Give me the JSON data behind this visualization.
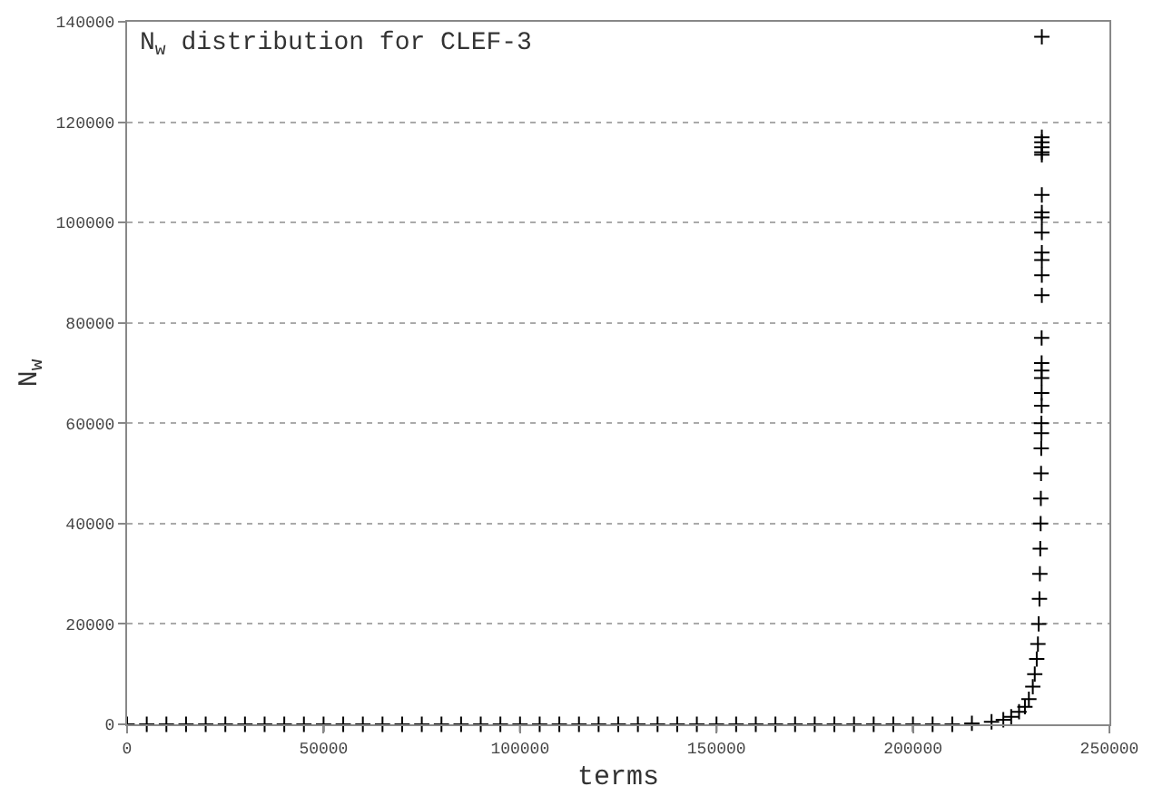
{
  "chart_data": {
    "type": "scatter",
    "title": "N$_{w}$ distribution for CLEF-3",
    "xlabel": "terms",
    "ylabel": "N$_{w}$",
    "xlim": [
      0,
      250000
    ],
    "xticks": [
      0,
      50000,
      100000,
      150000,
      200000,
      250000
    ],
    "ylim": [
      0,
      140000
    ],
    "yticks": [
      0,
      20000,
      40000,
      60000,
      80000,
      100000,
      120000,
      140000
    ],
    "grid": "y",
    "marker": "cross",
    "series": [
      {
        "color": "#000000",
        "x": [
          0,
          5000,
          10000,
          15000,
          20000,
          25000,
          30000,
          35000,
          40000,
          45000,
          50000,
          55000,
          60000,
          65000,
          70000,
          75000,
          80000,
          85000,
          90000,
          95000,
          100000,
          105000,
          110000,
          115000,
          120000,
          125000,
          130000,
          135000,
          140000,
          145000,
          150000,
          155000,
          160000,
          165000,
          170000,
          175000,
          180000,
          185000,
          190000,
          195000,
          200000,
          205000,
          210000,
          215000,
          220000,
          223000,
          225000,
          227000,
          228500,
          229500,
          230500,
          231000,
          231500,
          231800,
          232000,
          232200,
          232300,
          232400,
          232500,
          232550,
          232600,
          232650,
          232700,
          232700,
          232750,
          232750,
          232750,
          232750,
          232750,
          232750,
          232800,
          232800,
          232800,
          232800,
          232800,
          232800,
          232800,
          232800,
          232800,
          232800,
          232800,
          232800,
          232800,
          232800
        ],
        "values": [
          0,
          0,
          0,
          0,
          0,
          0,
          0,
          0,
          0,
          0,
          0,
          0,
          0,
          0,
          0,
          0,
          0,
          0,
          0,
          0,
          0,
          0,
          0,
          0,
          0,
          0,
          0,
          0,
          0,
          0,
          0,
          0,
          0,
          0,
          0,
          0,
          0,
          0,
          0,
          0,
          0,
          0,
          0,
          200,
          500,
          900,
          1500,
          2500,
          3500,
          5000,
          7500,
          10000,
          13000,
          16000,
          20000,
          25000,
          30000,
          35000,
          40000,
          45000,
          50000,
          55000,
          58000,
          60000,
          63500,
          66000,
          69000,
          70500,
          72000,
          77000,
          85500,
          89500,
          92500,
          94000,
          98000,
          101000,
          102000,
          105500,
          113500,
          114000,
          115000,
          116000,
          117000,
          137000
        ]
      }
    ]
  }
}
